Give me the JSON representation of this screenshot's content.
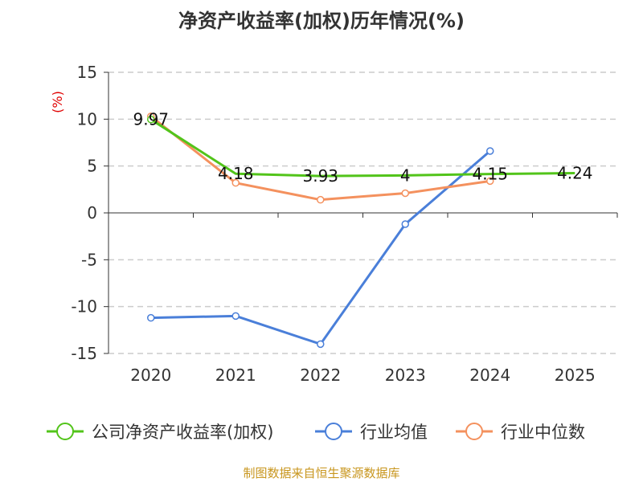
{
  "chart_data": {
    "type": "line",
    "title": "净资产收益率(加权)历年情况(%)",
    "ylabel": "(%)",
    "xlabel": "",
    "ylim": [
      -15,
      15
    ],
    "yticks": [
      15,
      10,
      5,
      0,
      -5,
      -10,
      -15
    ],
    "categories": [
      "2020",
      "2021",
      "2022",
      "2023",
      "2024",
      "2025"
    ],
    "series": [
      {
        "name": "公司净资产收益率(加权)",
        "color": "#52c41a",
        "values": [
          9.97,
          4.18,
          3.93,
          4,
          4.15,
          4.24
        ],
        "labels": [
          "9.97",
          "4.18",
          "3.93",
          "4",
          "4.15",
          "4.24"
        ]
      },
      {
        "name": "行业均值",
        "color": "#4a7fd9",
        "values": [
          -11.2,
          -11.0,
          -14.0,
          -1.2,
          6.6,
          null
        ]
      },
      {
        "name": "行业中位数",
        "color": "#f4915e",
        "values": [
          10.3,
          3.2,
          1.4,
          2.1,
          3.4,
          null
        ]
      }
    ],
    "grid": true,
    "legend_position": "bottom",
    "source": "制图数据来自恒生聚源数据库"
  }
}
